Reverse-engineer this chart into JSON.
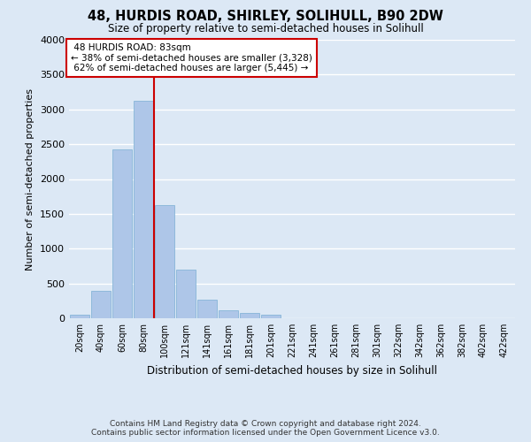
{
  "title": "48, HURDIS ROAD, SHIRLEY, SOLIHULL, B90 2DW",
  "subtitle": "Size of property relative to semi-detached houses in Solihull",
  "xlabel": "Distribution of semi-detached houses by size in Solihull",
  "ylabel": "Number of semi-detached properties",
  "footer_line1": "Contains HM Land Registry data © Crown copyright and database right 2024.",
  "footer_line2": "Contains public sector information licensed under the Open Government Licence v3.0.",
  "bar_labels": [
    "20sqm",
    "40sqm",
    "60sqm",
    "80sqm",
    "100sqm",
    "121sqm",
    "141sqm",
    "161sqm",
    "181sqm",
    "201sqm",
    "221sqm",
    "241sqm",
    "261sqm",
    "281sqm",
    "301sqm",
    "322sqm",
    "342sqm",
    "362sqm",
    "382sqm",
    "402sqm",
    "422sqm"
  ],
  "bar_values": [
    50,
    400,
    2430,
    3130,
    1620,
    700,
    270,
    120,
    70,
    50,
    0,
    0,
    0,
    0,
    0,
    0,
    0,
    0,
    0,
    0,
    0
  ],
  "bar_color": "#aec6e8",
  "bar_edge_color": "#7aafd4",
  "vline_color": "#cc0000",
  "vline_x_idx": 3.5,
  "property_size": "83sqm",
  "pct_smaller": 38,
  "count_smaller": 3328,
  "pct_larger": 62,
  "count_larger": 5445,
  "annotation_box_color": "#cc0000",
  "ylim": [
    0,
    4000
  ],
  "yticks": [
    0,
    500,
    1000,
    1500,
    2000,
    2500,
    3000,
    3500,
    4000
  ],
  "background_color": "#dce8f5",
  "grid_color": "#ffffff"
}
